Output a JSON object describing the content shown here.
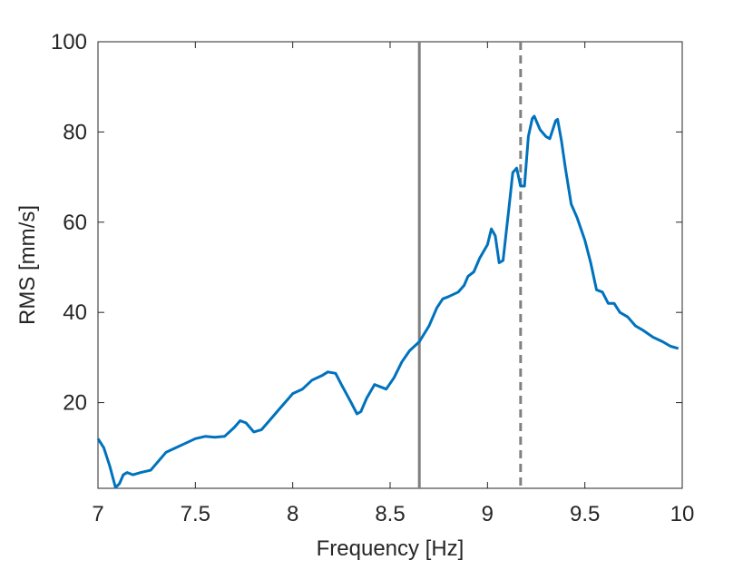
{
  "chart_data": {
    "type": "line",
    "xlabel": "Frequency [Hz]",
    "ylabel": "RMS [mm/s]",
    "x": [
      7.0,
      7.03,
      7.06,
      7.09,
      7.11,
      7.13,
      7.15,
      7.18,
      7.22,
      7.27,
      7.3,
      7.35,
      7.4,
      7.45,
      7.5,
      7.55,
      7.6,
      7.65,
      7.7,
      7.73,
      7.76,
      7.8,
      7.84,
      7.88,
      7.93,
      7.98,
      8.0,
      8.05,
      8.1,
      8.15,
      8.18,
      8.22,
      8.25,
      8.3,
      8.33,
      8.35,
      8.38,
      8.42,
      8.45,
      8.48,
      8.52,
      8.56,
      8.6,
      8.65,
      8.7,
      8.74,
      8.77,
      8.8,
      8.85,
      8.88,
      8.9,
      8.93,
      8.96,
      9.0,
      9.02,
      9.04,
      9.06,
      9.08,
      9.11,
      9.13,
      9.15,
      9.17,
      9.19,
      9.21,
      9.23,
      9.24,
      9.27,
      9.3,
      9.32,
      9.35,
      9.36,
      9.38,
      9.4,
      9.43,
      9.46,
      9.5,
      9.53,
      9.56,
      9.59,
      9.62,
      9.65,
      9.68,
      9.72,
      9.76,
      9.8,
      9.85,
      9.9,
      9.94,
      9.98
    ],
    "series": [
      {
        "color": "#0072bd",
        "values": [
          12,
          10,
          6,
          1.2,
          2,
          4,
          4.5,
          4,
          4.5,
          5,
          6.5,
          9,
          10,
          11,
          12,
          12.5,
          12.3,
          12.5,
          14.5,
          16,
          15.5,
          13.5,
          14,
          16,
          18.5,
          21,
          22,
          23,
          25,
          26,
          26.8,
          26.5,
          24,
          20,
          17.5,
          18,
          21,
          24,
          23.5,
          23,
          25.5,
          29,
          31.5,
          33.5,
          37,
          41,
          43,
          43.5,
          44.5,
          46,
          48,
          49,
          52,
          55,
          58.5,
          57,
          51,
          51.5,
          63,
          71,
          72,
          68,
          68,
          79,
          83,
          83.5,
          80.5,
          79,
          78.5,
          82.5,
          82.8,
          78,
          72,
          64,
          61,
          56,
          51,
          45,
          44.5,
          42,
          42,
          40,
          39,
          37,
          36,
          34.5,
          33.5,
          32.5,
          32
        ]
      }
    ],
    "vlines": [
      {
        "x": 8.65,
        "style": "solid",
        "color": "#808080"
      },
      {
        "x": 9.17,
        "style": "dashed",
        "color": "#808080"
      }
    ],
    "xlim": [
      7,
      10
    ],
    "ylim": [
      1,
      100
    ],
    "xticks": [
      7,
      7.5,
      8,
      8.5,
      9,
      9.5,
      10
    ],
    "yticks": [
      20,
      40,
      60,
      80,
      100
    ]
  }
}
